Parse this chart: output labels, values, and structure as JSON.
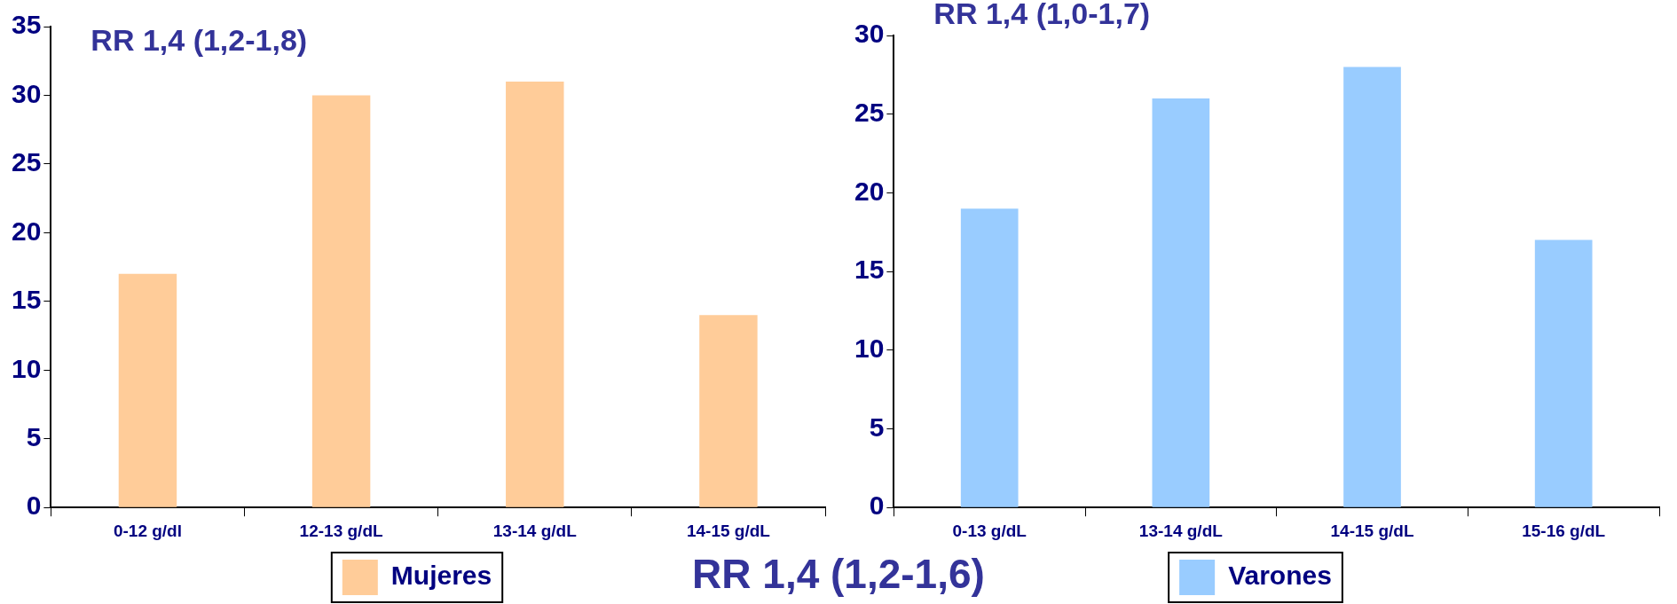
{
  "chart_data": [
    {
      "type": "bar",
      "categories": [
        "0-12 g/dl",
        "12-13 g/dL",
        "13-14 g/dL",
        "14-15 g/dL"
      ],
      "series": [
        {
          "name": "Mujeres",
          "color": "#ffcc99",
          "values": [
            17,
            30,
            31,
            14
          ]
        }
      ],
      "ylim": [
        0,
        35
      ],
      "yticks": [
        0,
        5,
        10,
        15,
        20,
        25,
        30,
        35
      ],
      "grid": false,
      "legend": "bottom",
      "annotations": [
        "RR 1,4 (1,2-1,8)"
      ]
    },
    {
      "type": "bar",
      "categories": [
        "0-13 g/dL",
        "13-14 g/dL",
        "14-15 g/dL",
        "15-16 g/dL"
      ],
      "series": [
        {
          "name": "Varones",
          "color": "#99ccff",
          "values": [
            19,
            26,
            28,
            17
          ]
        }
      ],
      "ylim": [
        0,
        30
      ],
      "yticks": [
        0,
        5,
        10,
        15,
        20,
        25,
        30
      ],
      "grid": false,
      "legend": "bottom",
      "annotations": [
        "RR 1,4 (1,0-1,7)"
      ]
    },
    {
      "type": "other",
      "annotations": [
        "RR 1,4 (1,2-1,6)"
      ]
    }
  ]
}
